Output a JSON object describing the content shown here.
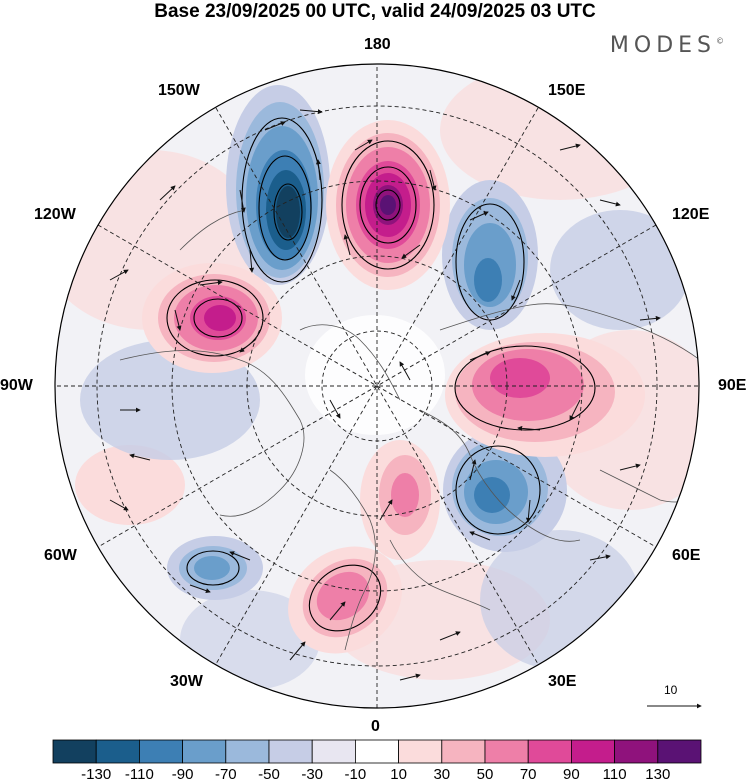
{
  "title": "Base 23/09/2025 00 UTC, valid 24/09/2025 03 UTC",
  "brand": "MODES",
  "brand_mark": "©",
  "longitude_labels": {
    "lon_180": "180",
    "lon_150E": "150E",
    "lon_120E": "120E",
    "lon_90E": "90E",
    "lon_60E": "60E",
    "lon_30E": "30E",
    "lon_0": "0",
    "lon_30W": "30W",
    "lon_60W": "60W",
    "lon_90W": "90W",
    "lon_120W": "120W",
    "lon_150W": "150W"
  },
  "reference_vector_label": "10",
  "colorbar": {
    "labels": [
      "-130",
      "-110",
      "-90",
      "-70",
      "-50",
      "-30",
      "-10",
      "10",
      "30",
      "50",
      "70",
      "90",
      "110",
      "130"
    ],
    "colors": [
      "#12405f",
      "#1b5e8c",
      "#3d7fb4",
      "#6a9ecb",
      "#9bb9dc",
      "#c6cde6",
      "#e8e6f1",
      "#ffffff",
      "#fbdcdc",
      "#f6b4c0",
      "#ee7fa8",
      "#e04a99",
      "#c41d8c",
      "#8f127c",
      "#5a1274"
    ]
  },
  "anomaly_colors": {
    "neg_strong": "#12405f",
    "neg_mid": "#3d7fb4",
    "neg_weak": "#9bb9dc",
    "neg_faint": "#c6cde6",
    "pos_faint": "#fbdcdc",
    "pos_weak": "#f6b4c0",
    "pos_mid": "#e04a99",
    "pos_strong": "#5a1274"
  }
}
